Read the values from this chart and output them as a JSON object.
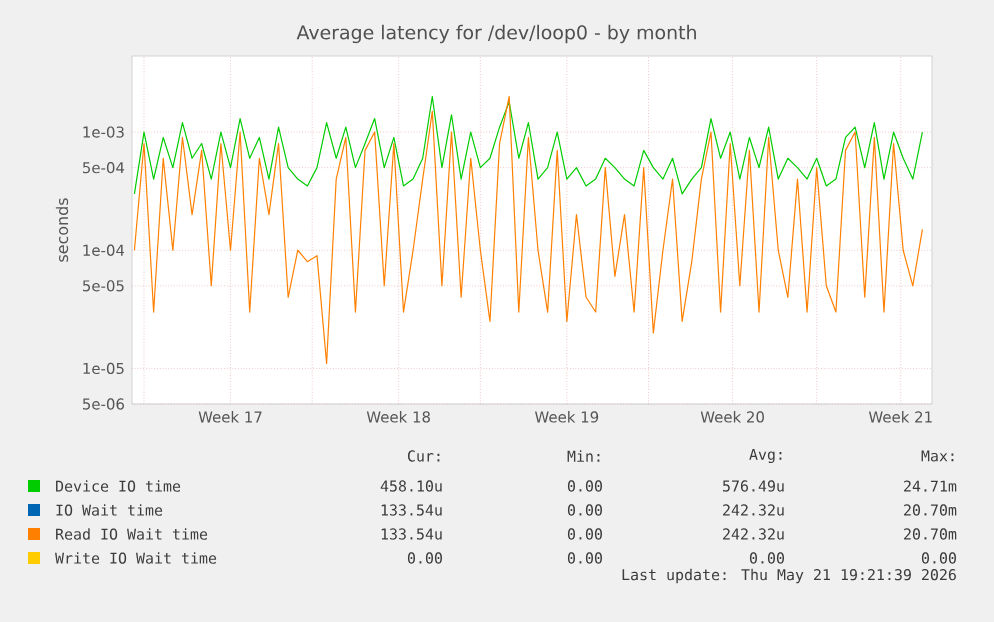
{
  "chart_data": {
    "type": "line",
    "title": "Average latency for /dev/loop0 - by month",
    "ylabel": "seconds",
    "log": "y",
    "grid": true,
    "legend": "bottom",
    "xlim": [
      "2026-04-19T12:00",
      "2026-05-22T19:12"
    ],
    "ylim": [
      5e-06,
      0.0044
    ],
    "xticks": [
      {
        "value": "2026-04-20",
        "label": null
      },
      {
        "value": "2026-04-23T14:24",
        "label": "Week 17"
      },
      {
        "value": "2026-04-27",
        "label": null
      },
      {
        "value": "2026-04-30T14:24",
        "label": "Week 18"
      },
      {
        "value": "2026-05-04",
        "label": null
      },
      {
        "value": "2026-05-07T14:24",
        "label": "Week 19"
      },
      {
        "value": "2026-05-11",
        "label": null
      },
      {
        "value": "2026-05-14T12:00",
        "label": "Week 20"
      },
      {
        "value": "2026-05-18",
        "label": null
      },
      {
        "value": "2026-05-21T12:00",
        "label": "Week 21"
      }
    ],
    "yticks": [
      {
        "value": 5e-06,
        "label": "5e-06"
      },
      {
        "value": 1e-05,
        "label": "1e-05"
      },
      {
        "value": 5e-05,
        "label": "5e-05"
      },
      {
        "value": 0.0001,
        "label": "1e-04"
      },
      {
        "value": 0.0005,
        "label": "5e-04"
      },
      {
        "value": 0.001,
        "label": "1e-03"
      }
    ],
    "x": [
      "2026-04-19T14:24",
      "2026-04-20T00:00",
      "2026-04-20T09:36",
      "2026-04-20T19:12",
      "2026-04-21T04:48",
      "2026-04-21T14:24",
      "2026-04-22T00:00",
      "2026-04-22T09:36",
      "2026-04-22T19:12",
      "2026-04-23T04:48",
      "2026-04-23T14:24",
      "2026-04-24T00:00",
      "2026-04-24T09:36",
      "2026-04-24T19:12",
      "2026-04-25T04:48",
      "2026-04-25T14:24",
      "2026-04-26T00:00",
      "2026-04-26T09:36",
      "2026-04-26T19:12",
      "2026-04-27T04:48",
      "2026-04-27T14:24",
      "2026-04-28T00:00",
      "2026-04-28T09:36",
      "2026-04-28T19:12",
      "2026-04-29T04:48",
      "2026-04-29T14:24",
      "2026-04-30T00:00",
      "2026-04-30T09:36",
      "2026-04-30T19:12",
      "2026-05-01T04:48",
      "2026-05-01T14:24",
      "2026-05-02T00:00",
      "2026-05-02T09:36",
      "2026-05-02T19:12",
      "2026-05-03T04:48",
      "2026-05-03T14:24",
      "2026-05-04T00:00",
      "2026-05-04T09:36",
      "2026-05-04T19:12",
      "2026-05-05T04:48",
      "2026-05-05T14:24",
      "2026-05-06T00:00",
      "2026-05-06T09:36",
      "2026-05-06T19:12",
      "2026-05-07T04:48",
      "2026-05-07T14:24",
      "2026-05-08T00:00",
      "2026-05-08T09:36",
      "2026-05-08T19:12",
      "2026-05-09T04:48",
      "2026-05-09T14:24",
      "2026-05-10T00:00",
      "2026-05-10T09:36",
      "2026-05-10T19:12",
      "2026-05-11T04:48",
      "2026-05-11T14:24",
      "2026-05-12T00:00",
      "2026-05-12T09:36",
      "2026-05-12T19:12",
      "2026-05-13T04:48",
      "2026-05-13T14:24",
      "2026-05-14T00:00",
      "2026-05-14T09:36",
      "2026-05-14T19:12",
      "2026-05-15T04:48",
      "2026-05-15T14:24",
      "2026-05-16T00:00",
      "2026-05-16T09:36",
      "2026-05-16T19:12",
      "2026-05-17T04:48",
      "2026-05-17T14:24",
      "2026-05-18T00:00",
      "2026-05-18T09:36",
      "2026-05-18T19:12",
      "2026-05-19T04:48",
      "2026-05-19T14:24",
      "2026-05-20T00:00",
      "2026-05-20T09:36",
      "2026-05-20T19:12",
      "2026-05-21T04:48",
      "2026-05-21T14:24",
      "2026-05-22T00:00",
      "2026-05-22T09:36"
    ],
    "series": [
      {
        "name": "Device IO time",
        "color": "#00cc00",
        "values": [
          0.0003,
          0.001,
          0.0004,
          0.0009,
          0.0005,
          0.0012,
          0.0006,
          0.0008,
          0.0004,
          0.001,
          0.0005,
          0.0013,
          0.0006,
          0.0009,
          0.0004,
          0.0011,
          0.0005,
          0.0004,
          0.00035,
          0.0005,
          0.0012,
          0.0006,
          0.0011,
          0.0005,
          0.0008,
          0.0013,
          0.0005,
          0.0009,
          0.00035,
          0.0004,
          0.0006,
          0.002,
          0.0005,
          0.0014,
          0.0004,
          0.001,
          0.0005,
          0.0006,
          0.0011,
          0.0018,
          0.0006,
          0.0012,
          0.0004,
          0.0005,
          0.001,
          0.0004,
          0.0005,
          0.00035,
          0.0004,
          0.0006,
          0.0005,
          0.0004,
          0.00035,
          0.0007,
          0.0005,
          0.0004,
          0.0006,
          0.0003,
          0.0004,
          0.0005,
          0.0013,
          0.0006,
          0.001,
          0.0004,
          0.0009,
          0.0005,
          0.0011,
          0.0004,
          0.0006,
          0.0005,
          0.0004,
          0.0006,
          0.00035,
          0.0004,
          0.0009,
          0.0011,
          0.0005,
          0.0012,
          0.0004,
          0.001,
          0.0006,
          0.0004,
          0.001
        ]
      },
      {
        "name": "IO Wait time",
        "color": "#0066b3",
        "values": [
          null,
          null,
          null,
          null,
          null,
          null,
          null,
          null,
          null,
          null,
          null,
          null,
          null,
          null,
          null,
          null,
          null,
          null,
          null,
          null,
          null,
          null,
          null,
          null,
          null,
          null,
          null,
          null,
          null,
          null,
          null,
          null,
          null,
          null,
          null,
          null,
          null,
          null,
          null,
          null,
          null,
          null,
          null,
          null,
          null,
          null,
          null,
          null,
          null,
          null,
          null,
          null,
          null,
          null,
          null,
          null,
          null,
          null,
          null,
          null,
          null,
          null,
          null,
          null,
          null,
          null,
          null,
          null,
          null,
          null,
          null,
          null,
          null,
          null,
          null,
          null,
          null,
          null,
          null,
          null,
          null,
          null,
          null
        ]
      },
      {
        "name": "Read IO Wait time",
        "color": "#ff8000",
        "values": [
          0.0001,
          0.0008,
          3e-05,
          0.0006,
          0.0001,
          0.0009,
          0.0002,
          0.0007,
          5e-05,
          0.0008,
          0.0001,
          0.001,
          3e-05,
          0.0006,
          0.0002,
          0.0008,
          4e-05,
          0.0001,
          8e-05,
          9e-05,
          1.1e-05,
          0.0004,
          0.0009,
          3e-05,
          0.0007,
          0.001,
          5e-05,
          0.0008,
          3e-05,
          0.0001,
          0.0004,
          0.0015,
          5e-05,
          0.001,
          4e-05,
          0.0006,
          0.0001,
          2.5e-05,
          0.0008,
          0.002,
          3e-05,
          0.0009,
          0.0001,
          3e-05,
          0.0007,
          2.5e-05,
          0.0002,
          4e-05,
          3e-05,
          0.0005,
          6e-05,
          0.0002,
          3e-05,
          0.0005,
          2e-05,
          0.0001,
          0.0004,
          2.5e-05,
          8e-05,
          0.0004,
          0.001,
          3e-05,
          0.0008,
          5e-05,
          0.0007,
          3e-05,
          0.0009,
          0.0001,
          4e-05,
          0.0004,
          3e-05,
          0.0005,
          5e-05,
          3e-05,
          0.0007,
          0.001,
          4e-05,
          0.0009,
          3e-05,
          0.0008,
          0.0001,
          5e-05,
          0.00015
        ]
      },
      {
        "name": "Write IO Wait time",
        "color": "#ffcc00",
        "values": [
          null,
          null,
          null,
          null,
          null,
          null,
          null,
          null,
          null,
          null,
          null,
          null,
          null,
          null,
          null,
          null,
          null,
          null,
          null,
          null,
          null,
          null,
          null,
          null,
          null,
          null,
          null,
          null,
          null,
          null,
          null,
          null,
          null,
          null,
          null,
          null,
          null,
          null,
          null,
          null,
          null,
          null,
          null,
          null,
          null,
          null,
          null,
          null,
          null,
          null,
          null,
          null,
          null,
          null,
          null,
          null,
          null,
          null,
          null,
          null,
          null,
          null,
          null,
          null,
          null,
          null,
          null,
          null,
          null,
          null,
          null,
          null,
          null,
          null,
          null,
          null,
          null,
          null,
          null,
          null,
          null,
          null,
          null
        ]
      }
    ],
    "annotations": [
      "Cur:",
      "Min:",
      "Avg:",
      "Max:",
      "458.10u",
      "0.00",
      "576.49u",
      "24.71m",
      "133.54u",
      "0.00",
      "242.32u",
      "20.70m",
      "133.54u",
      "0.00",
      "242.32u",
      "20.70m",
      "0.00",
      "0.00",
      "0.00",
      "0.00",
      "Last update: Thu May 21 19:21:39 2026"
    ]
  }
}
